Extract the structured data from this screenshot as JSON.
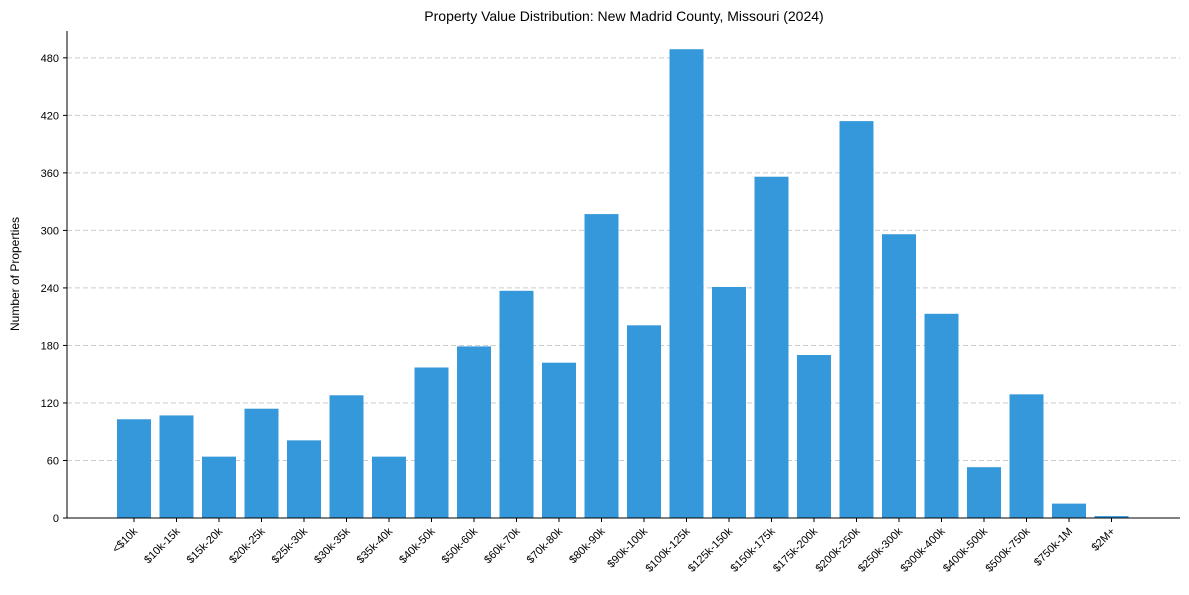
{
  "chart_data": {
    "type": "bar",
    "title": "Property Value Distribution: New Madrid County, Missouri (2024)",
    "xlabel": "",
    "ylabel": "Number of Properties",
    "categories": [
      "<$10k",
      "$10k-15k",
      "$15k-20k",
      "$20k-25k",
      "$25k-30k",
      "$30k-35k",
      "$35k-40k",
      "$40k-50k",
      "$50k-60k",
      "$60k-70k",
      "$70k-80k",
      "$80k-90k",
      "$90k-100k",
      "$100k-125k",
      "$125k-150k",
      "$150k-175k",
      "$175k-200k",
      "$200k-250k",
      "$250k-300k",
      "$300k-400k",
      "$400k-500k",
      "$500k-750k",
      "$750k-1M",
      "$2M+"
    ],
    "values": [
      103,
      107,
      64,
      114,
      81,
      128,
      64,
      157,
      179,
      237,
      162,
      317,
      201,
      489,
      241,
      356,
      170,
      414,
      296,
      213,
      53,
      129,
      15,
      2
    ],
    "yticks": [
      0,
      60,
      120,
      180,
      240,
      300,
      360,
      420,
      480
    ],
    "ylim": [
      0,
      508
    ],
    "grid": "horizontal dashed",
    "bar_color": "#3498db"
  }
}
